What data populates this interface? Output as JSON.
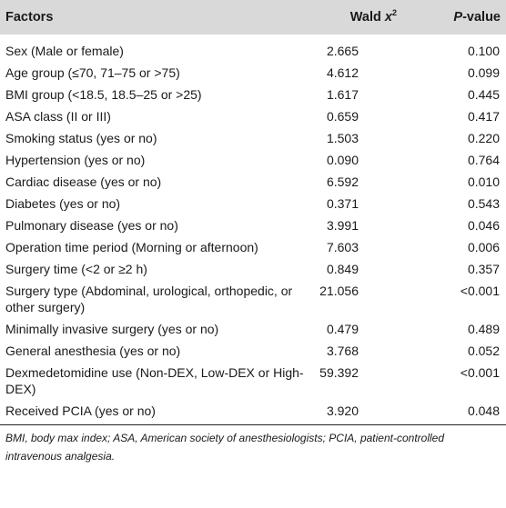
{
  "header": {
    "factors": "Factors",
    "wald_prefix": "Wald ",
    "wald_x": "x",
    "wald_sup": "2",
    "pvalue_p": "P",
    "pvalue_rest": "-value"
  },
  "rows": [
    {
      "factor": "Sex (Male or female)",
      "wald": "2.665",
      "p": "0.100"
    },
    {
      "factor": "Age group (≤70, 71–75 or >75)",
      "wald": "4.612",
      "p": "0.099"
    },
    {
      "factor": "BMI group (<18.5, 18.5–25 or >25)",
      "wald": "1.617",
      "p": "0.445"
    },
    {
      "factor": "ASA class (II or III)",
      "wald": "0.659",
      "p": "0.417"
    },
    {
      "factor": "Smoking status (yes or no)",
      "wald": "1.503",
      "p": "0.220"
    },
    {
      "factor": "Hypertension (yes or no)",
      "wald": "0.090",
      "p": "0.764"
    },
    {
      "factor": "Cardiac disease (yes or no)",
      "wald": "6.592",
      "p": "0.010"
    },
    {
      "factor": "Diabetes (yes or no)",
      "wald": "0.371",
      "p": "0.543"
    },
    {
      "factor": "Pulmonary disease (yes or no)",
      "wald": "3.991",
      "p": "0.046"
    },
    {
      "factor": "Operation time period (Morning or afternoon)",
      "wald": "7.603",
      "p": "0.006"
    },
    {
      "factor": "Surgery time (<2 or ≥2 h)",
      "wald": "0.849",
      "p": "0.357"
    },
    {
      "factor": "Surgery type (Abdominal, urological, orthopedic, or other surgery)",
      "wald": "21.056",
      "p": "<0.001"
    },
    {
      "factor": "Minimally invasive surgery (yes or no)",
      "wald": "0.479",
      "p": "0.489"
    },
    {
      "factor": "General anesthesia (yes or no)",
      "wald": "3.768",
      "p": "0.052"
    },
    {
      "factor": "Dexmedetomidine use (Non-DEX, Low-DEX or High-DEX)",
      "wald": "59.392",
      "p": "<0.001"
    },
    {
      "factor": "Received PCIA (yes or no)",
      "wald": "3.920",
      "p": "0.048"
    }
  ],
  "footnote": "BMI, body max index; ASA, American society of anesthesiologists; PCIA, patient-controlled intravenous analgesia."
}
